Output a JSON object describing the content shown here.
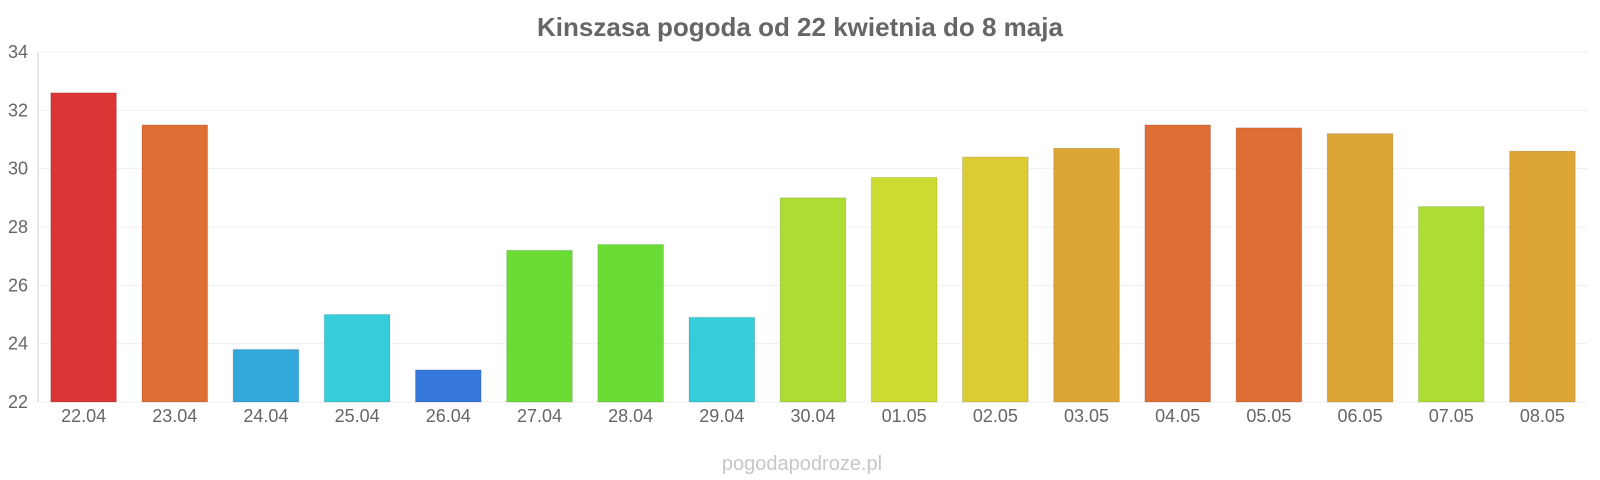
{
  "chart_data": {
    "type": "bar",
    "title": "Kinszasa pogoda od 22 kwietnia do 8 maja",
    "xlabel": "",
    "ylabel": "",
    "ylim": [
      22,
      34
    ],
    "yticks": [
      "22",
      "24",
      "26",
      "28",
      "30",
      "32",
      "34"
    ],
    "grid": true,
    "categories": [
      "22.04",
      "23.04",
      "24.04",
      "25.04",
      "26.04",
      "27.04",
      "28.04",
      "29.04",
      "30.04",
      "01.05",
      "02.05",
      "03.05",
      "04.05",
      "05.05",
      "06.05",
      "07.05",
      "08.05"
    ],
    "values": [
      32.6,
      31.5,
      23.8,
      25.0,
      23.1,
      27.2,
      27.4,
      24.9,
      29.0,
      29.7,
      30.4,
      30.7,
      31.5,
      31.4,
      31.2,
      28.7,
      30.6
    ],
    "colors": [
      "#dc3535",
      "#de6e33",
      "#33a7da",
      "#35cdd9",
      "#3577db",
      "#6bdc35",
      "#6bdc35",
      "#35cdd9",
      "#addc35",
      "#cddc33",
      "#dccb35",
      "#dca535",
      "#de6e33",
      "#de6e33",
      "#dca535",
      "#addc35",
      "#dca535"
    ]
  },
  "watermark": "pogodapodroze.pl"
}
